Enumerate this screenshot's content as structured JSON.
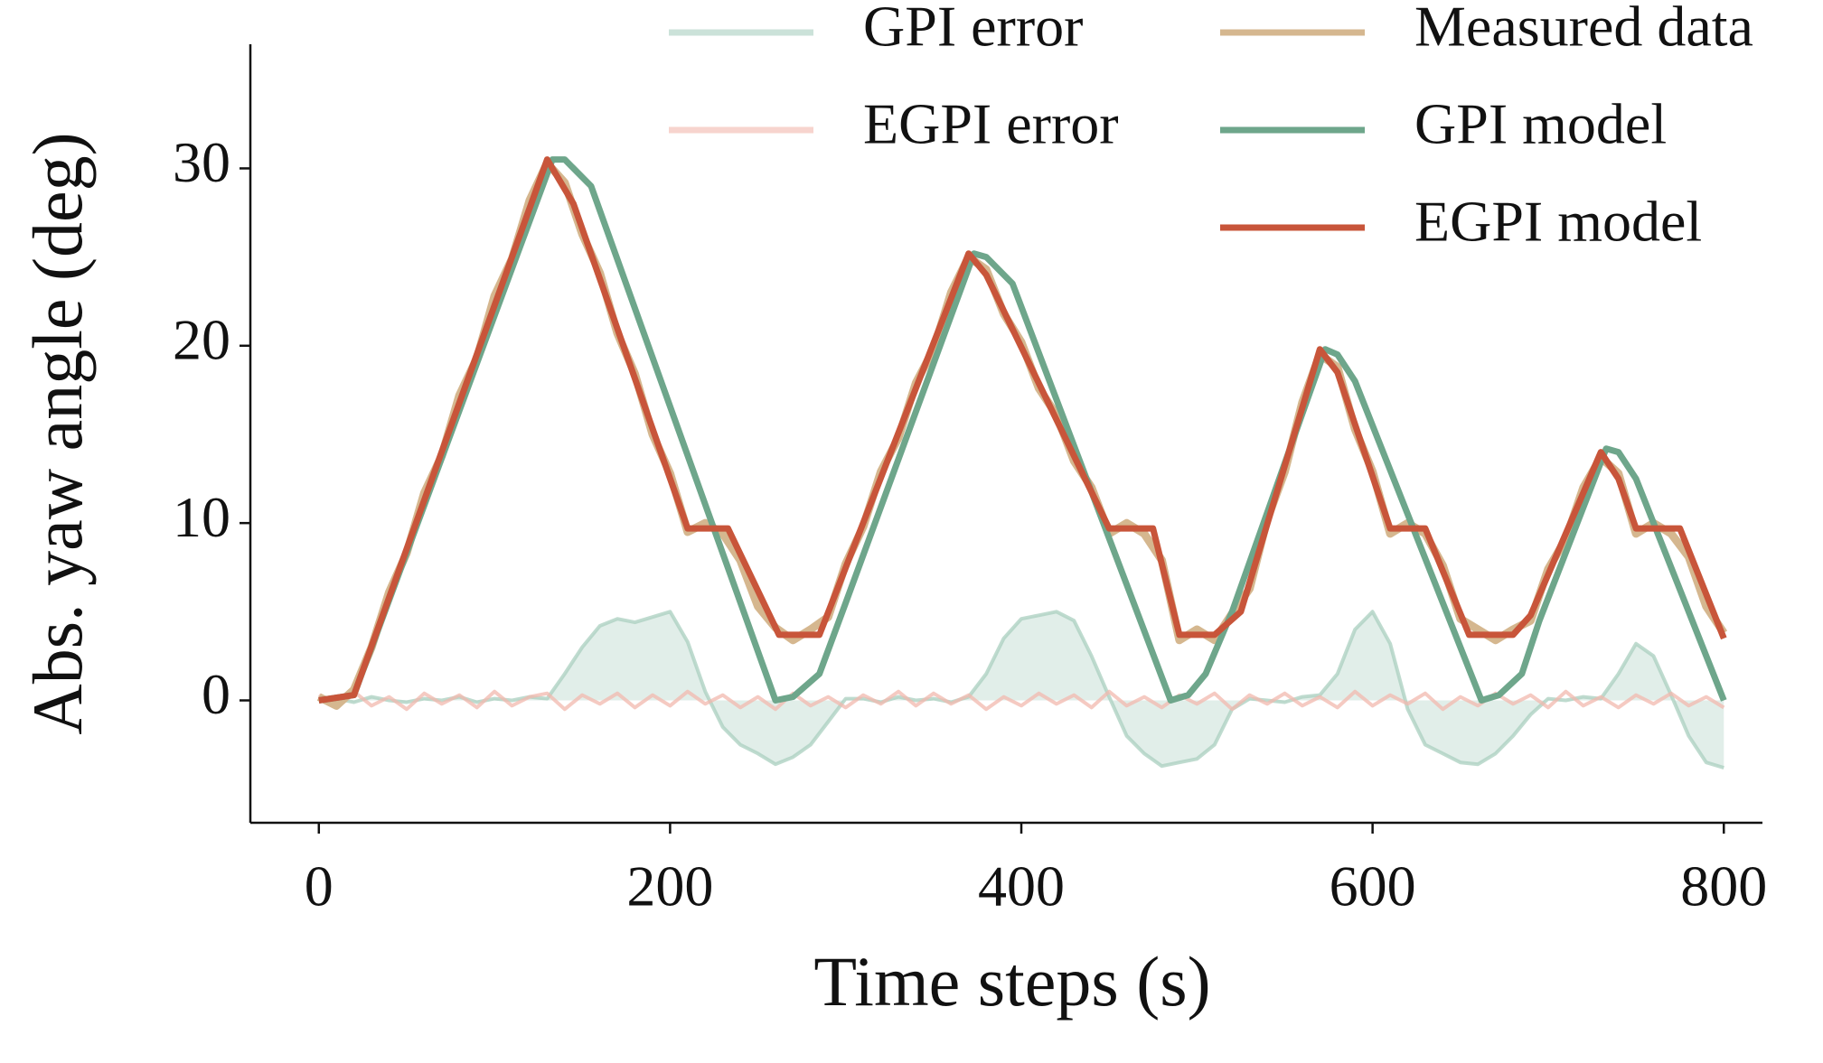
{
  "chart_data": {
    "type": "line",
    "x_label": "Time steps (s)",
    "y_label": "Abs. yaw angle (deg)",
    "xlim": [
      -39,
      822
    ],
    "ylim": [
      -6.9,
      37
    ],
    "xticks": [
      0,
      200,
      400,
      600,
      800
    ],
    "yticks": [
      0,
      10,
      20,
      30
    ],
    "legend": "upper right",
    "x": [
      0,
      10,
      20,
      30,
      40,
      50,
      60,
      70,
      80,
      90,
      100,
      110,
      120,
      130,
      140,
      150,
      160,
      170,
      180,
      190,
      200,
      210,
      220,
      230,
      240,
      250,
      260,
      270,
      280,
      290,
      300,
      310,
      320,
      330,
      340,
      350,
      360,
      370,
      380,
      390,
      400,
      410,
      420,
      430,
      440,
      450,
      460,
      470,
      480,
      490,
      500,
      510,
      520,
      530,
      540,
      550,
      560,
      570,
      580,
      590,
      600,
      610,
      620,
      630,
      640,
      650,
      660,
      670,
      680,
      690,
      700,
      710,
      720,
      730,
      740,
      750,
      760,
      770,
      780,
      790,
      800
    ],
    "series": [
      {
        "name": "GPI error",
        "color": "#a9cfbf",
        "fill": true,
        "values": [
          0,
          0.1,
          -0.1,
          0.2,
          0,
          -0.1,
          0.1,
          0,
          0.2,
          -0.1,
          0.1,
          0,
          0.2,
          0.1,
          1.5,
          3.0,
          4.2,
          4.6,
          4.4,
          4.7,
          5.0,
          3.3,
          0.5,
          -1.5,
          -2.5,
          -3.0,
          -3.6,
          -3.2,
          -2.5,
          -1.2,
          0.1,
          0.1,
          -0.1,
          0.2,
          0,
          0.1,
          -0.1,
          0.2,
          1.5,
          3.5,
          4.6,
          4.8,
          5.0,
          4.5,
          2.5,
          0.2,
          -2.0,
          -3.0,
          -3.7,
          -3.5,
          -3.3,
          -2.5,
          -0.5,
          0.1,
          0,
          -0.1,
          0.2,
          0.3,
          1.5,
          4.0,
          5.0,
          3.2,
          -0.5,
          -2.5,
          -3.0,
          -3.5,
          -3.6,
          -3.0,
          -2.0,
          -0.8,
          0.1,
          0,
          0.2,
          0.1,
          1.5,
          3.2,
          2.5,
          0.3,
          -2.0,
          -3.5,
          -3.8
        ]
      },
      {
        "name": "EGPI error",
        "color": "#f2b8ad",
        "values": [
          0.3,
          -0.4,
          0.5,
          -0.3,
          0.2,
          -0.5,
          0.4,
          -0.2,
          0.3,
          -0.4,
          0.5,
          -0.3,
          0.2,
          0.4,
          -0.5,
          0.3,
          -0.2,
          0.4,
          -0.4,
          0.3,
          -0.3,
          0.5,
          -0.2,
          0.3,
          -0.4,
          0.2,
          -0.5,
          0.4,
          -0.3,
          0.2,
          -0.4,
          0.3,
          -0.2,
          0.5,
          -0.3,
          0.4,
          -0.2,
          0.3,
          -0.5,
          0.2,
          -0.3,
          0.4,
          -0.2,
          0.3,
          -0.4,
          0.5,
          -0.3,
          0.2,
          -0.4,
          0.3,
          -0.2,
          0.4,
          -0.5,
          0.3,
          -0.2,
          0.4,
          -0.3,
          0.2,
          -0.4,
          0.5,
          -0.3,
          0.3,
          -0.2,
          0.4,
          -0.5,
          0.2,
          -0.3,
          0.4,
          -0.2,
          0.3,
          -0.4,
          0.5,
          -0.3,
          0.2,
          -0.4,
          0.3,
          -0.2,
          0.4,
          -0.3,
          0.2,
          -0.4
        ]
      },
      {
        "name": "Measured data",
        "color": "#d5b78f",
        "values": [
          0.2,
          -0.3,
          0.6,
          3.0,
          6.1,
          8.3,
          11.7,
          13.8,
          17.2,
          19.3,
          22.8,
          24.9,
          28.2,
          30.3,
          29.2,
          26.3,
          24.1,
          20.7,
          18.4,
          15.0,
          12.8,
          9.5,
          10.0,
          9.4,
          7.9,
          5.3,
          4.1,
          3.4,
          4.0,
          4.7,
          7.7,
          9.8,
          12.9,
          14.8,
          17.9,
          19.8,
          23.0,
          25.0,
          24.3,
          21.8,
          20.2,
          17.6,
          16.1,
          13.5,
          12.0,
          9.4,
          10.0,
          9.4,
          7.9,
          3.4,
          4.0,
          3.4,
          4.9,
          6.3,
          10.2,
          12.9,
          16.8,
          19.5,
          18.8,
          15.3,
          12.9,
          9.4,
          10.0,
          9.4,
          7.6,
          4.6,
          4.0,
          3.4,
          4.0,
          4.5,
          7.4,
          9.1,
          12.0,
          13.7,
          12.8,
          9.4,
          10.0,
          9.4,
          8.1,
          5.3,
          3.8
        ]
      },
      {
        "name": "GPI model",
        "color": "#6ea68b",
        "x": [
          0,
          20,
          133,
          140,
          155,
          260,
          270,
          285,
          300,
          373,
          380,
          395,
          485,
          495,
          505,
          520,
          573,
          580,
          590,
          662,
          672,
          685,
          695,
          733,
          740,
          750,
          800
        ],
        "values": [
          0,
          0.3,
          30.5,
          30.5,
          29,
          0,
          0.2,
          1.5,
          5.5,
          25.2,
          25,
          23.5,
          0,
          0.3,
          1.5,
          5,
          19.8,
          19.5,
          18,
          0,
          0.3,
          1.5,
          4.5,
          14.2,
          14,
          12.5,
          0
        ]
      },
      {
        "name": "EGPI model",
        "color": "#c8553a",
        "x": [
          0,
          20,
          130,
          145,
          210,
          233,
          262,
          285,
          370,
          380,
          450,
          475,
          490,
          510,
          525,
          570,
          580,
          610,
          630,
          655,
          680,
          690,
          730,
          740,
          750,
          775,
          800
        ],
        "values": [
          0,
          0.3,
          30.5,
          28,
          9.7,
          9.7,
          3.7,
          3.7,
          25.2,
          24,
          9.7,
          9.7,
          3.7,
          3.7,
          5,
          19.8,
          18.5,
          9.7,
          9.7,
          3.7,
          3.7,
          4.8,
          14,
          12.5,
          9.7,
          9.7,
          3.5
        ]
      }
    ]
  }
}
